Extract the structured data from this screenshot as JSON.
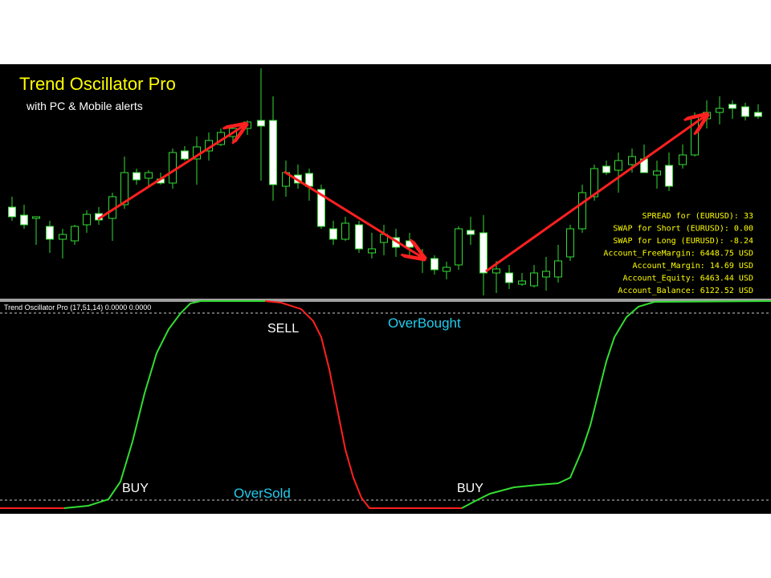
{
  "header": {
    "title": "Trend Oscillator Pro",
    "subtitle": "with PC & Mobile alerts"
  },
  "account_info": [
    "SPREAD for (EURUSD): 33",
    "SWAP for Short (EURUSD): 0.00",
    "SWAP for Long (EURUSD): -8.24",
    "Account_FreeMargin: 6448.75 USD",
    "Account_Margin: 14.69 USD",
    "Account_Equity: 6463.44 USD",
    "Account_Balance: 6122.52 USD"
  ],
  "indicator": {
    "header": "Trend Oscillator Pro (17,51,14) 0.0000 0.0000",
    "labels": {
      "sell": "SELL",
      "buy_1": "BUY",
      "buy_2": "BUY",
      "overbought": "OverBought",
      "oversold": "OverSold"
    }
  }
}
